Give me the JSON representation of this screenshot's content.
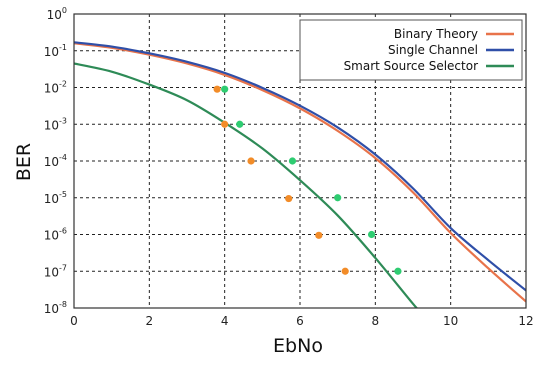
{
  "chart_data": {
    "type": "line",
    "xlabel": "EbNo",
    "ylabel": "BER",
    "xlim": [
      0,
      12
    ],
    "ylim": [
      1e-08,
      1
    ],
    "yscale": "log",
    "grid": true,
    "legend_position": "top-right",
    "x_ticks": [
      "0",
      "2",
      "4",
      "6",
      "8",
      "10",
      "12"
    ],
    "y_ticks": [
      {
        "base": "10",
        "exp": "0"
      },
      {
        "base": "10",
        "exp": "-1"
      },
      {
        "base": "10",
        "exp": "-2"
      },
      {
        "base": "10",
        "exp": "-3"
      },
      {
        "base": "10",
        "exp": "-4"
      },
      {
        "base": "10",
        "exp": "-5"
      },
      {
        "base": "10",
        "exp": "-6"
      },
      {
        "base": "10",
        "exp": "-7"
      },
      {
        "base": "10",
        "exp": "-8"
      }
    ],
    "series": [
      {
        "name": "Binary Theory",
        "kind": "line",
        "color": "#e8734a",
        "x": [
          0,
          1,
          2,
          3,
          4,
          5,
          6,
          7,
          8,
          9,
          10,
          11,
          12
        ],
        "y": [
          0.16,
          0.12,
          0.078,
          0.045,
          0.022,
          0.0085,
          0.0027,
          0.00066,
          0.00012,
          1.4e-05,
          1.1e-06,
          1.2e-07,
          1.5e-08
        ]
      },
      {
        "name": "Single Channel",
        "kind": "line",
        "color": "#2f4fa8",
        "x": [
          0,
          1,
          2,
          3,
          4,
          5,
          6,
          7,
          8,
          9,
          10,
          11,
          12
        ],
        "y": [
          0.17,
          0.13,
          0.085,
          0.05,
          0.025,
          0.0098,
          0.0032,
          0.00082,
          0.00015,
          1.8e-05,
          1.5e-06,
          2e-07,
          3e-08
        ]
      },
      {
        "name": "Smart Source Selector",
        "kind": "line",
        "color": "#2e8b57",
        "x": [
          0,
          1,
          2,
          3,
          4,
          5,
          6,
          7,
          8,
          9,
          9.2
        ],
        "y": [
          0.045,
          0.027,
          0.012,
          0.0045,
          0.0011,
          0.00022,
          3e-05,
          3.3e-06,
          2.3e-07,
          1.3e-08,
          8e-09
        ]
      },
      {
        "kind": "scatter",
        "color": "#2ecc71",
        "x": [
          4.0,
          4.4,
          5.8,
          7.0,
          7.9,
          8.6
        ],
        "y": [
          0.009,
          0.001,
          0.0001,
          1e-05,
          1e-06,
          1e-07
        ]
      },
      {
        "kind": "scatter",
        "color": "#f28c28",
        "x": [
          3.8,
          4.0,
          4.7,
          5.7,
          6.5,
          7.2
        ],
        "y": [
          0.009,
          0.001,
          0.0001,
          9.5e-06,
          9.5e-07,
          1e-07
        ]
      }
    ]
  }
}
